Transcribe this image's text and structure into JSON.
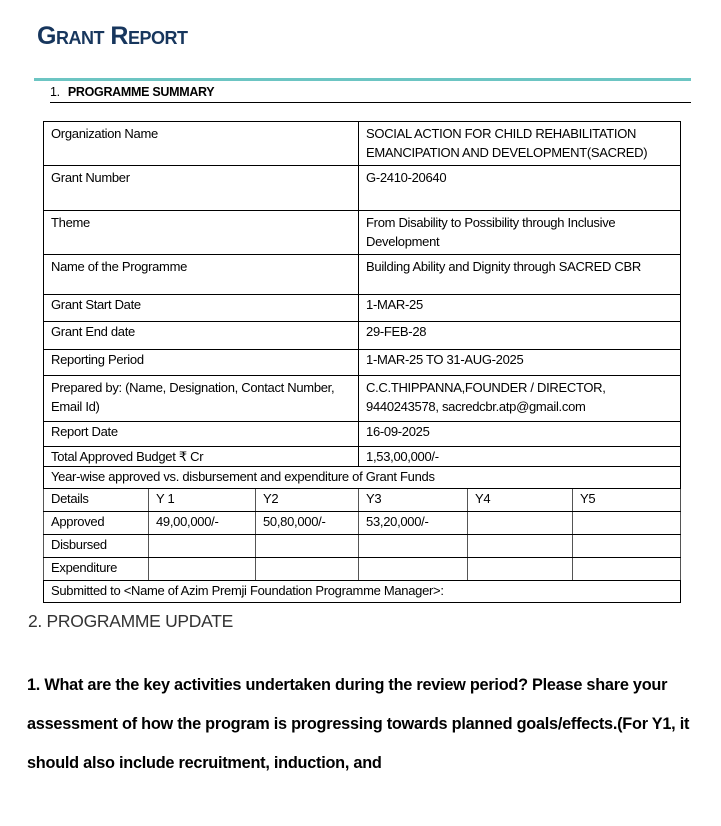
{
  "title": "Grant Report",
  "section1": {
    "number": "1.",
    "heading": "PROGRAMME SUMMARY"
  },
  "summary": [
    {
      "label": "Organization Name",
      "value": "SOCIAL ACTION FOR CHILD REHABILITATION EMANCIPATION AND DEVELOPMENT(SACRED)"
    },
    {
      "label": "Grant Number",
      "value": "G-2410-20640"
    },
    {
      "label": "Theme",
      "value": "From Disability to Possibility through Inclusive Development"
    },
    {
      "label": "Name of the Programme",
      "value": "Building Ability and Dignity through SACRED CBR"
    },
    {
      "label": "Grant Start Date",
      "value": "1-MAR-25"
    },
    {
      "label": "Grant End date",
      "value": "29-FEB-28"
    },
    {
      "label": "Reporting Period",
      "value": "1-MAR-25 TO 31-AUG-2025"
    },
    {
      "label": "Prepared by: (Name, Designation, Contact Number, Email Id)",
      "value": "C.C.THIPPANNA,FOUNDER / DIRECTOR, 9440243578, sacredcbr.atp@gmail.com"
    },
    {
      "label": "Report Date",
      "value": "16-09-2025"
    },
    {
      "label": "Total Approved Budget ₹ Cr",
      "value": "1,53,00,000/-"
    }
  ],
  "funds": {
    "heading": "Year-wise approved vs. disbursement and expenditure of Grant Funds",
    "columns": [
      "Details",
      "Y 1",
      "Y2",
      "Y3",
      "Y4",
      "Y5"
    ],
    "rows": [
      [
        "Approved",
        "49,00,000/-",
        "50,80,000/-",
        "53,20,000/-",
        "",
        ""
      ],
      [
        "Disbursed",
        "",
        "",
        "",
        "",
        ""
      ],
      [
        "Expenditure",
        "",
        "",
        "",
        "",
        ""
      ]
    ],
    "submitted_to": "Submitted to <Name of Azim Premji Foundation Programme Manager>:"
  },
  "section2": {
    "heading": "2. PROGRAMME UPDATE"
  },
  "question1": "1. What are the key activities undertaken during the review period? Please share your assessment of how the program is progressing towards planned goals/effects.(For Y1, it should also include recruitment, induction, and",
  "colors": {
    "title": "#17365d",
    "rule": "#6cc5c3"
  }
}
